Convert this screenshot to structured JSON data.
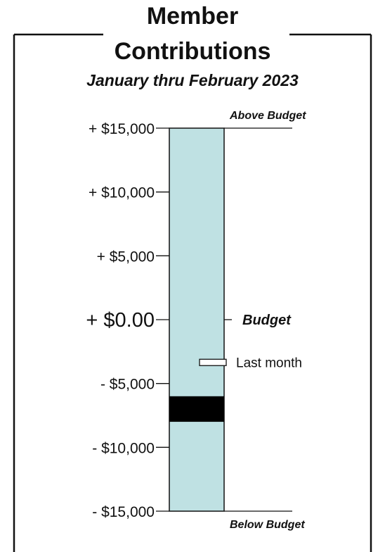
{
  "chart_data": {
    "type": "bar",
    "title": "Member Contributions",
    "title_lines": [
      "Member",
      "Contributions"
    ],
    "subtitle": "January thru February 2023",
    "ylim": [
      -15000,
      15000
    ],
    "y_ticks": [
      {
        "value": 15000,
        "label": "+ $15,000"
      },
      {
        "value": 10000,
        "label": "+ $10,000"
      },
      {
        "value": 5000,
        "label": "+ $5,000"
      },
      {
        "value": 0,
        "label": "+ $0.00"
      },
      {
        "value": -5000,
        "label": "- $5,000"
      },
      {
        "value": -10000,
        "label": "- $10,000"
      },
      {
        "value": -15000,
        "label": "- $15,000"
      }
    ],
    "current_value_range": [
      -8000,
      -6000
    ],
    "last_month_value": -3350,
    "annotations": {
      "top": "Above Budget",
      "zero": "Budget",
      "bottom": "Below Budget",
      "marker": "Last month"
    },
    "grid": false,
    "colors": {
      "gauge_fill": "#bfe1e3",
      "current_marker": "#000000",
      "last_month_marker": "#ffffff",
      "frame": "#111111"
    }
  }
}
